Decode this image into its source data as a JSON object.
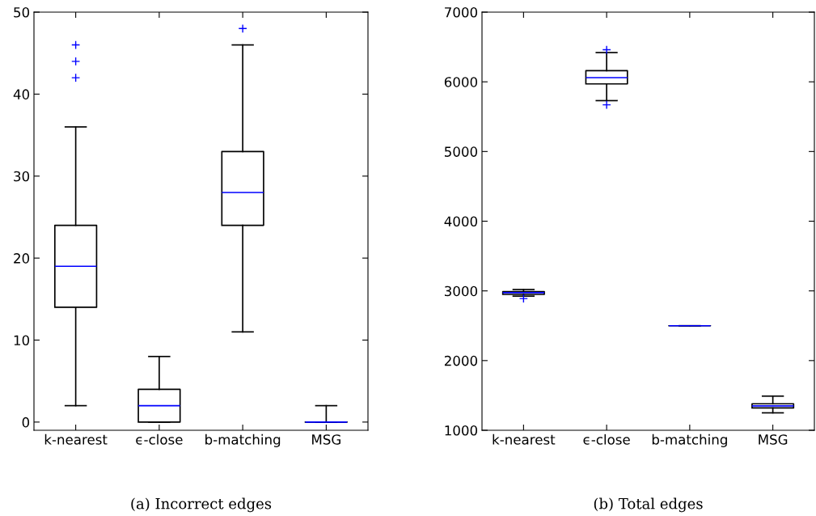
{
  "chart_data": [
    {
      "type": "box",
      "xlabel": "(a) Incorrect edges",
      "categories": [
        "k-nearest",
        "ϵ-close",
        "b-matching",
        "MSG"
      ],
      "boxes": [
        {
          "low": 2,
          "q1": 14,
          "median": 19,
          "q3": 24,
          "high": 36,
          "outliers": [
            42,
            44,
            46
          ]
        },
        {
          "low": 0,
          "q1": 0,
          "median": 2,
          "q3": 4,
          "high": 8
        },
        {
          "low": 11,
          "q1": 24,
          "median": 28,
          "q3": 33,
          "high": 46,
          "outliers": [
            48
          ]
        },
        {
          "low": 0,
          "q1": 0,
          "median": 0,
          "q3": 0,
          "high": 2
        }
      ],
      "ylim": [
        -1,
        50
      ],
      "yticks": [
        0,
        10,
        20,
        30,
        40,
        50
      ],
      "grid": false
    },
    {
      "type": "box",
      "xlabel": "(b) Total edges",
      "categories": [
        "k-nearest",
        "ϵ-close",
        "b-matching",
        "MSG"
      ],
      "boxes": [
        {
          "low": 2925,
          "q1": 2950,
          "median": 2975,
          "q3": 2990,
          "high": 3020,
          "outliers": [
            2890
          ]
        },
        {
          "low": 5730,
          "q1": 5970,
          "median": 6060,
          "q3": 6160,
          "high": 6420,
          "outliers": [
            5670,
            6460
          ]
        },
        {
          "low": 2500,
          "q1": 2500,
          "median": 2500,
          "q3": 2500,
          "high": 2500
        },
        {
          "low": 1250,
          "q1": 1320,
          "median": 1350,
          "q3": 1380,
          "high": 1490
        }
      ],
      "ylim": [
        1000,
        7000
      ],
      "yticks": [
        1000,
        2000,
        3000,
        4000,
        5000,
        6000,
        7000
      ],
      "grid": false
    }
  ]
}
